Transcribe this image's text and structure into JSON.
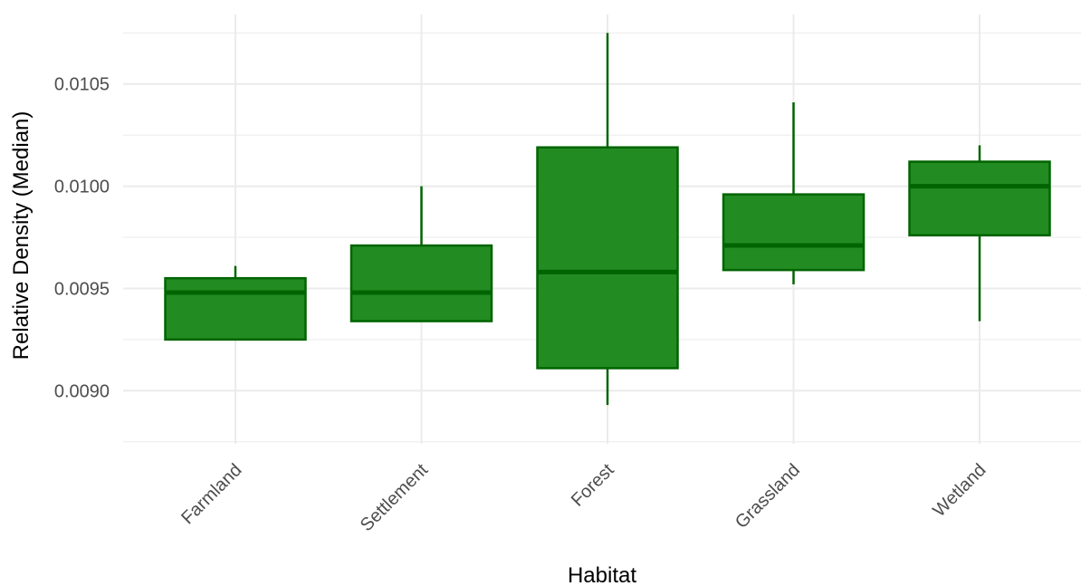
{
  "chart_data": {
    "type": "boxplot",
    "xlabel": "Habitat",
    "ylabel": "Relative Density (Median)",
    "ylim": [
      0.00874,
      0.01084
    ],
    "yticks": [
      0.009,
      0.0095,
      0.01,
      0.0105
    ],
    "ytick_labels": [
      "0.0090",
      "0.0095",
      "0.0100",
      "0.0105"
    ],
    "categories": [
      "Farmland",
      "Settlement",
      "Forest",
      "Grassland",
      "Wetland"
    ],
    "boxes": [
      {
        "category": "Farmland",
        "whisker_low": 0.00925,
        "q1": 0.00925,
        "median": 0.00948,
        "q3": 0.00955,
        "whisker_high": 0.00961
      },
      {
        "category": "Settlement",
        "whisker_low": 0.00934,
        "q1": 0.00934,
        "median": 0.00948,
        "q3": 0.00971,
        "whisker_high": 0.01
      },
      {
        "category": "Forest",
        "whisker_low": 0.00893,
        "q1": 0.00911,
        "median": 0.00958,
        "q3": 0.01019,
        "whisker_high": 0.01075
      },
      {
        "category": "Grassland",
        "whisker_low": 0.00952,
        "q1": 0.00959,
        "median": 0.00971,
        "q3": 0.00996,
        "whisker_high": 0.01041
      },
      {
        "category": "Wetland",
        "whisker_low": 0.00934,
        "q1": 0.00976,
        "median": 0.01,
        "q3": 0.01012,
        "whisker_high": 0.0102
      }
    ],
    "grid": true,
    "legend": "none",
    "colors": {
      "fill": "#228b22",
      "line": "#006400",
      "grid": "#ebebeb",
      "text": "#4d4d4d"
    }
  }
}
